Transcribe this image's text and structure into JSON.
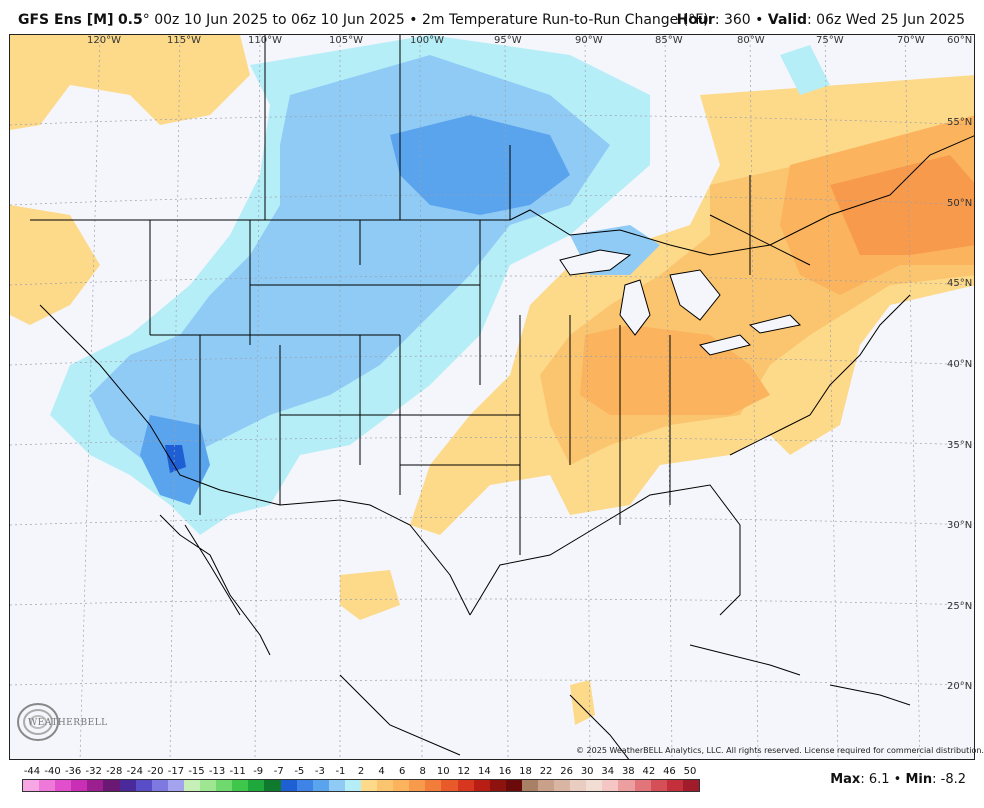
{
  "header": {
    "model": "GFS Ens [M]",
    "resolution": "0.5",
    "degree_symbol": "°",
    "run_range": "00z 10 Jun 2025 to 06z 10 Jun 2025",
    "separator": "•",
    "product": "2m Temperature Run-to-Run Change (°F)",
    "hour_label": "Hour",
    "hour_value": ": 360",
    "valid_label": "Valid",
    "valid_value": ": 06z Wed 25 Jun 2025"
  },
  "map": {
    "longitude_labels": [
      "120°W",
      "115°W",
      "110°W",
      "105°W",
      "100°W",
      "95°W",
      "90°W",
      "85°W",
      "80°W",
      "75°W",
      "70°W",
      "60°N"
    ],
    "latitude_labels": [
      "55°N",
      "50°N",
      "45°N",
      "40°N",
      "35°N",
      "30°N",
      "25°N",
      "20°N"
    ],
    "background_color": "#f4f6fb",
    "warm_color_light": "#fdd98a",
    "warm_color_mid": "#fbb35e",
    "warm_color_strong": "#f79a4c",
    "cool_color_light": "#b6eef8",
    "cool_color_mid": "#8fcbf5",
    "cool_color_strong": "#5aa4ee",
    "cool_color_max": "#1f5fd4"
  },
  "copyright": "© 2025 WeatherBELL Analytics, LLC. All rights reserved. License required for commercial distribution.",
  "logo": {
    "text": "WEATHERBELL"
  },
  "legend": {
    "labels": [
      "-44",
      "-40",
      "-36",
      "-32",
      "-28",
      "-24",
      "-20",
      "-17",
      "-15",
      "-13",
      "-11",
      "-9",
      "-7",
      "-5",
      "-3",
      "-1",
      "2",
      "4",
      "6",
      "8",
      "10",
      "12",
      "14",
      "16",
      "18",
      "22",
      "26",
      "30",
      "34",
      "38",
      "42",
      "46",
      "50"
    ],
    "colors": [
      "#f7a8e4",
      "#ee79d9",
      "#e24fcc",
      "#c92fb5",
      "#9c1f8f",
      "#6b1774",
      "#4a2a9a",
      "#5a4dc8",
      "#7d79e0",
      "#a4a4ee",
      "#c7f0b8",
      "#9fe693",
      "#6fd86e",
      "#3fc74c",
      "#1fa83c",
      "#0f7a2e",
      "#1f5fd4",
      "#3f83e6",
      "#5aa4ee",
      "#8fcbf5",
      "#b6eef8",
      "#fdd98a",
      "#fbc56f",
      "#fbb35e",
      "#f79a4c",
      "#f27c3a",
      "#e85a2a",
      "#d6371e",
      "#b81e14",
      "#8e120e",
      "#6a0a0a",
      "#a88066",
      "#c9a08a",
      "#d9b5a3",
      "#e9cdc0",
      "#f2ddd5",
      "#f5c7c4",
      "#ec9f9e",
      "#e17579",
      "#d44f57",
      "#c3303c",
      "#a11c2a"
    ]
  },
  "stats": {
    "max_label": "Max",
    "max_value": ": 6.1",
    "min_label": "Min",
    "min_value": ": -8.2",
    "separator": "•"
  }
}
